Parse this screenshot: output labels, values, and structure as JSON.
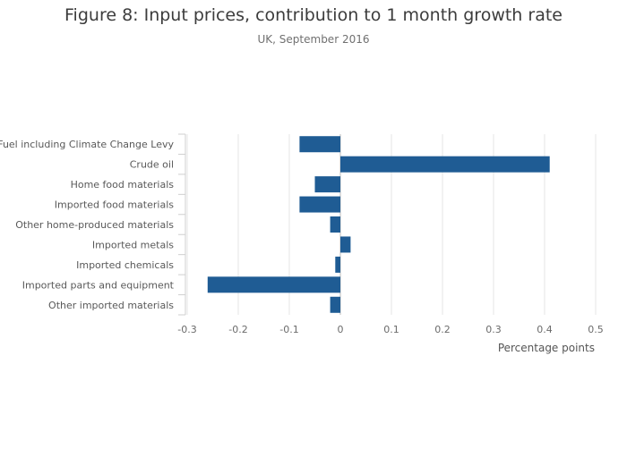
{
  "chart_data": {
    "type": "bar",
    "orientation": "horizontal",
    "title": "Figure 8: Input prices, contribution to 1 month growth rate",
    "subtitle": "UK, September 2016",
    "xlabel": "Percentage points",
    "ylabel": "",
    "xlim": [
      -0.3,
      0.5
    ],
    "xticks": [
      "-0.3",
      "-0.2",
      "-0.1",
      "0",
      "0.1",
      "0.2",
      "0.3",
      "0.4",
      "0.5"
    ],
    "categories": [
      "Fuel including Climate Change Levy",
      "Crude oil",
      "Home food materials",
      "Imported food materials",
      "Other home-produced materials",
      "Imported metals",
      "Imported chemicals",
      "Imported parts and equipment",
      "Other imported materials"
    ],
    "values": [
      -0.08,
      0.41,
      -0.05,
      -0.08,
      -0.02,
      0.02,
      -0.01,
      -0.26,
      -0.02
    ],
    "bar_color": "#1f5c94",
    "grid": true
  }
}
